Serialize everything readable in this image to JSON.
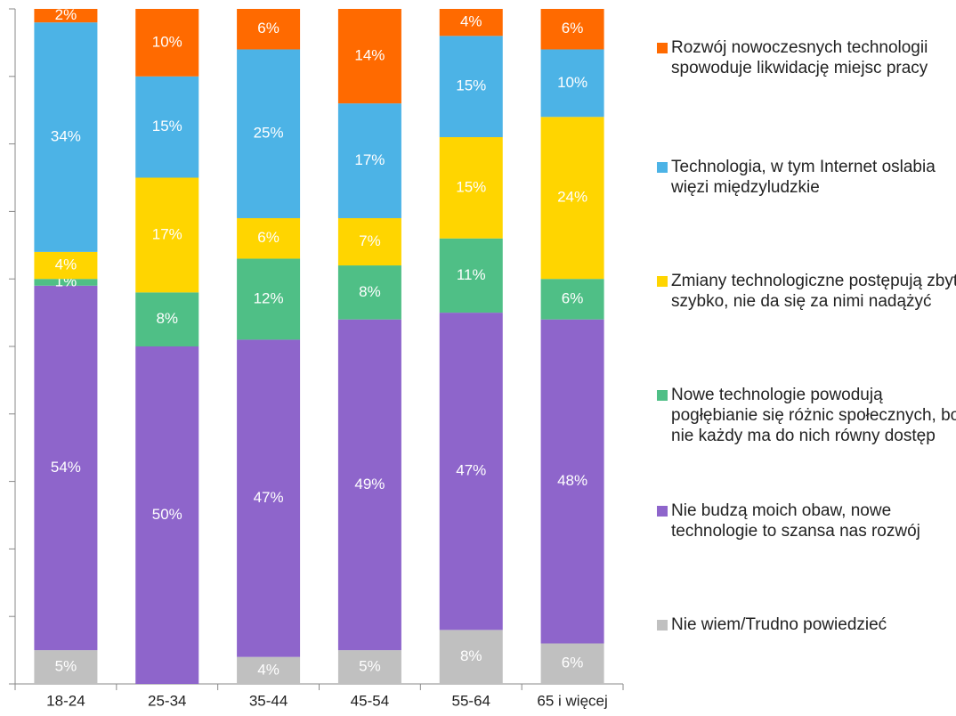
{
  "chart_data": {
    "type": "stacked_bar",
    "categories": [
      "18-24",
      "25-34",
      "35-44",
      "45-54",
      "55-64",
      "65 i więcej"
    ],
    "ylim": [
      0,
      100
    ],
    "yticks": [
      0,
      10,
      20,
      30,
      40,
      50,
      60,
      70,
      80,
      90,
      100
    ],
    "series": [
      {
        "name": "Nie wiem/Trudno powiedzieć",
        "color": "#c0c0c0",
        "values": [
          5,
          0,
          4,
          5,
          8,
          6
        ],
        "value_labels": [
          "5%",
          null,
          "4%",
          "5%",
          "8%",
          "6%"
        ]
      },
      {
        "name": "Nie budzą moich obaw, nowe technologie to szansa nas rozwój",
        "color": "#8e65cb",
        "values": [
          54,
          50,
          47,
          49,
          47,
          48
        ],
        "value_labels": [
          "54%",
          "50%",
          "47%",
          "49%",
          "47%",
          "48%"
        ]
      },
      {
        "name": "Nowe technologie powodują pogłębianie się różnic społecznych, bo nie każdy ma do nich równy dostęp",
        "color": "#4fbf86",
        "values": [
          1,
          8,
          12,
          8,
          11,
          6
        ],
        "value_labels": [
          "1%",
          "8%",
          "12%",
          "8%",
          "11%",
          "6%"
        ]
      },
      {
        "name": "Zmiany technologiczne postępują zbyt szybko, nie da się za nimi nadążyć",
        "color": "#ffd500",
        "values": [
          4,
          17,
          6,
          7,
          15,
          24
        ],
        "value_labels": [
          "4%",
          "17%",
          "6%",
          "7%",
          "15%",
          "24%"
        ]
      },
      {
        "name": "Technologia, w tym Internet oslabia więzi międzyludzkie",
        "color": "#4cb3e6",
        "values": [
          34,
          15,
          25,
          17,
          15,
          10
        ],
        "value_labels": [
          "34%",
          "15%",
          "25%",
          "17%",
          "15%",
          "10%"
        ]
      },
      {
        "name": "Rozwój nowoczesnych technologii spowoduje likwidację miejsc pracy",
        "color": "#ff6a00",
        "values": [
          2,
          10,
          6,
          14,
          4,
          6
        ],
        "value_labels": [
          "2%",
          "10%",
          "6%",
          "14%",
          "4%",
          "6%"
        ]
      }
    ]
  }
}
